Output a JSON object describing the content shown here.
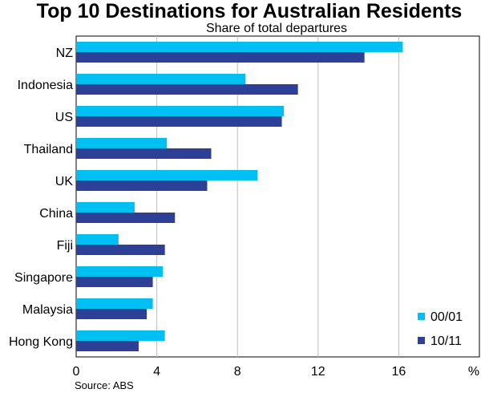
{
  "chart_data": {
    "type": "bar",
    "orientation": "horizontal",
    "title": "Top 10 Destinations for Australian Residents",
    "subtitle": "Share of total departures",
    "categories": [
      "NZ",
      "Indonesia",
      "US",
      "Thailand",
      "UK",
      "China",
      "Fiji",
      "Singapore",
      "Malaysia",
      "Hong Kong"
    ],
    "series": [
      {
        "name": "00/01",
        "color": "#00BFF3",
        "values": [
          16.2,
          8.4,
          10.3,
          4.5,
          9.0,
          2.9,
          2.1,
          4.3,
          3.8,
          4.4
        ]
      },
      {
        "name": "10/11",
        "color": "#2E3F96",
        "values": [
          14.3,
          11.0,
          10.2,
          6.7,
          6.5,
          4.9,
          4.4,
          3.8,
          3.5,
          3.1
        ]
      }
    ],
    "xticks": [
      "0",
      "4",
      "8",
      "12",
      "16"
    ],
    "xtick_values": [
      0,
      4,
      8,
      12,
      16
    ],
    "xunit": "%",
    "xlim": [
      0,
      20
    ],
    "grid": true,
    "legend_position": "bottom-right",
    "source": "Source: ABS"
  }
}
